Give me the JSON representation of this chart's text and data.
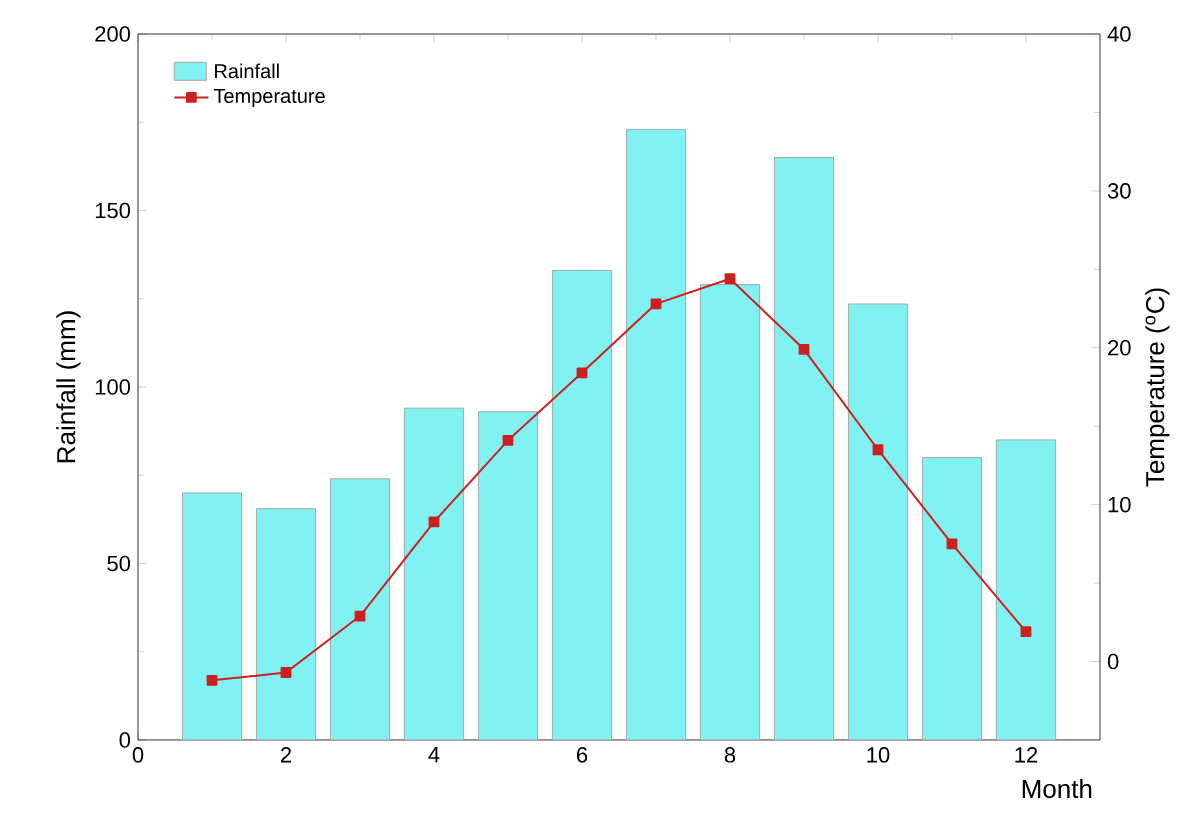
{
  "chart_data": {
    "type": "bar",
    "xlabel": "Month",
    "ylabel": "Rainfall (mm)",
    "y2label": "Temperature ($^{o}$C)",
    "x": [
      1,
      2,
      3,
      4,
      5,
      6,
      7,
      8,
      9,
      10,
      11,
      12
    ],
    "series": [
      {
        "name": "Rainfall",
        "color": "#80f2f2",
        "values": [
          70,
          65.5,
          74,
          94,
          93,
          133,
          173,
          129,
          165,
          123.5,
          80,
          85
        ]
      },
      {
        "name": "Temperature",
        "type": "line",
        "axis": "y2",
        "color": "#cc1f1f",
        "values": [
          -1.2,
          -0.7,
          2.9,
          8.9,
          14.1,
          18.4,
          22.8,
          24.4,
          19.9,
          13.5,
          7.5,
          1.9
        ]
      }
    ],
    "xlim": [
      0,
      13
    ],
    "xticks": [
      0,
      2,
      4,
      6,
      8,
      10,
      12
    ],
    "ylim": [
      0,
      200
    ],
    "yticks": [
      0,
      50,
      100,
      150,
      200
    ],
    "y2lim": [
      -5,
      40
    ],
    "y2ticks": [
      0,
      10,
      20,
      30,
      40
    ],
    "marker": "square",
    "line_style": "solid",
    "legend": "top left",
    "grid": false
  }
}
